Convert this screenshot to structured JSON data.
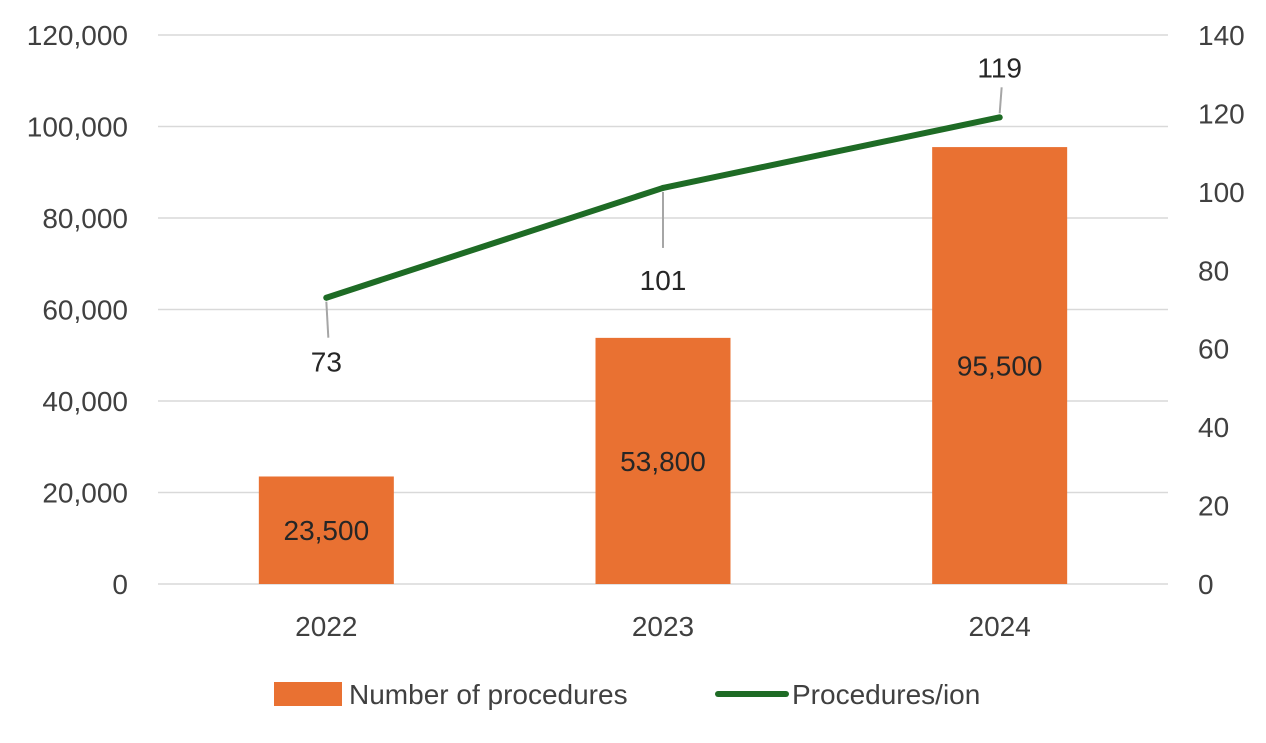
{
  "chart_data": {
    "type": "bar",
    "categories": [
      "2022",
      "2023",
      "2024"
    ],
    "series": [
      {
        "name": "Number of procedures",
        "kind": "bar",
        "axis": "left",
        "color": "#E97132",
        "values": [
          23500,
          53800,
          95500
        ],
        "data_labels": [
          "23,500",
          "53,800",
          "95,500"
        ]
      },
      {
        "name": "Procedures/ion",
        "kind": "line",
        "axis": "right",
        "color": "#1E6B25",
        "values": [
          73,
          101,
          119
        ],
        "data_labels": [
          "73",
          "101",
          "119"
        ]
      }
    ],
    "y_left": {
      "range": [
        0,
        120000
      ],
      "ticks": [
        0,
        20000,
        40000,
        60000,
        80000,
        100000,
        120000
      ],
      "tick_labels": [
        "0",
        "20,000",
        "40,000",
        "60,000",
        "80,000",
        "100,000",
        "120,000"
      ]
    },
    "y_right": {
      "range": [
        0,
        140
      ],
      "ticks": [
        0,
        20,
        40,
        60,
        80,
        100,
        120,
        140
      ],
      "tick_labels": [
        "0",
        "20",
        "40",
        "60",
        "80",
        "100",
        "120",
        "140"
      ]
    },
    "grid": true,
    "legend_position": "bottom",
    "colors": {
      "bar": "#E97132",
      "line": "#1E6B25",
      "grid": "#D9D9D9",
      "text": "#404040",
      "label_text": "#262626",
      "leader": "#A6A6A6"
    }
  }
}
